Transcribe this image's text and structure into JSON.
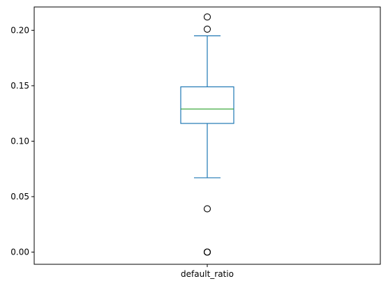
{
  "chart_data": {
    "type": "box",
    "categories": [
      "default_ratio"
    ],
    "boxes": [
      {
        "name": "default_ratio",
        "whisker_low": 0.067,
        "q1": 0.116,
        "median": 0.129,
        "q3": 0.149,
        "whisker_high": 0.195,
        "outliers": [
          0.212,
          0.201,
          0.039,
          0.0,
          0.0,
          0.0
        ]
      }
    ],
    "ylim": [
      -0.011,
      0.221
    ],
    "yticks": [
      "0.00",
      "0.05",
      "0.10",
      "0.15",
      "0.20"
    ],
    "grid": false,
    "colors": {
      "box": "#1f77b4",
      "median": "#2ca02c",
      "outlier": "#000000",
      "axis": "#000000"
    }
  }
}
